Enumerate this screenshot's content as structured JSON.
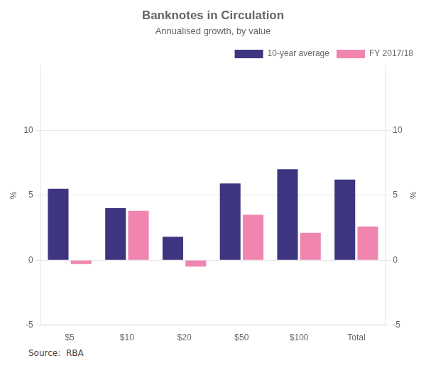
{
  "chart_data": {
    "type": "bar",
    "title": "Banknotes in Circulation",
    "subtitle": "Annualised growth, by value",
    "source": "Source:  RBA",
    "ylabel": "%",
    "y2label": "%",
    "categories": [
      "$5",
      "$10",
      "$20",
      "$50",
      "$100",
      "Total"
    ],
    "series": [
      {
        "name": "10-year average",
        "color": "#3d3580",
        "values": [
          5.5,
          4.0,
          1.8,
          5.9,
          7.0,
          6.2
        ]
      },
      {
        "name": "FY 2017/18",
        "color": "#f085b0",
        "values": [
          -0.3,
          3.8,
          -0.5,
          3.5,
          2.1,
          2.6
        ]
      }
    ],
    "ylim": [
      -5,
      15
    ],
    "yticks": [
      -5,
      0,
      5,
      10
    ],
    "y2lim": [
      -5,
      15
    ],
    "y2ticks": [
      -5,
      0,
      5,
      10
    ],
    "grid": true,
    "legend": "upper right"
  }
}
